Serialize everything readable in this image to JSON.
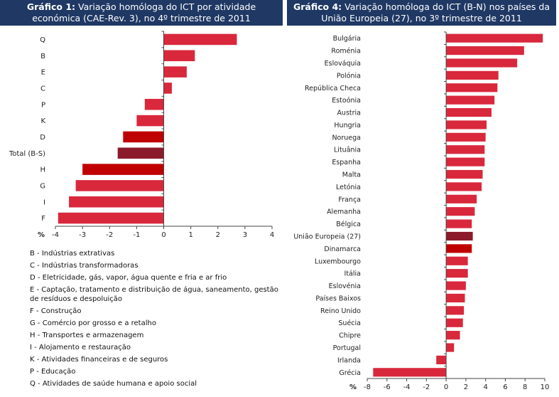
{
  "chart1": {
    "title_bold": "Gráfico 1:",
    "title_line1": " Variação homóloga do ICT por atividade",
    "title_line2": "económica (CAE-Rev. 3), no 4º trimestre de 2011",
    "unit_label": "%"
  },
  "chart2": {
    "title_bold": "Gráfico 4:",
    "title_line1": " Variação homóloga do ICT (B-N) nos países da",
    "title_line2": "União Europeia (27), no 3º trimestre de 2011",
    "unit_label": "%"
  },
  "legend": [
    "B - Indústrias extrativas",
    "C - Indústrias transformadoras",
    "D - Eletricidade, gás, vapor, água quente e fria e ar frio",
    "E - Captação, tratamento e distribuição de água, saneamento, gestão de resíduos e despoluição",
    "F - Construção",
    "G - Comércio por grosso e a retalho",
    "H - Transportes e armazenagem",
    "I - Alojamento e restauração",
    "K - Atividades financeiras e de seguros",
    "P - Educação",
    "Q - Atividades de saúde humana e apoio social"
  ],
  "colors": {
    "bar": "#d9283c",
    "bar_dark": "#c00000",
    "bar_total": "#8b1a2a",
    "header_bg": "#1f3864"
  },
  "chart_data": [
    {
      "type": "bar",
      "orientation": "horizontal",
      "title": "Gráfico 1: Variação homóloga do ICT por atividade económica (CAE-Rev. 3), no 4º trimestre de 2011",
      "ylabel": "%",
      "categories": [
        "Q",
        "B",
        "E",
        "C",
        "P",
        "K",
        "D",
        "Total (B-S)",
        "H",
        "G",
        "I",
        "F"
      ],
      "values": [
        2.7,
        1.15,
        0.85,
        0.3,
        -0.7,
        -1.0,
        -1.5,
        -1.7,
        -3.0,
        -3.25,
        -3.5,
        -3.9
      ],
      "highlight": {
        "D": "dark",
        "H": "dark",
        "Total (B-S)": "total"
      },
      "xlim": [
        -4,
        4
      ],
      "xticks": [
        -4,
        -3,
        -2,
        -1,
        0,
        1,
        2,
        3,
        4
      ]
    },
    {
      "type": "bar",
      "orientation": "horizontal",
      "title": "Gráfico 4: Variação homóloga do ICT (B-N) nos países da União Europeia (27), no 3º trimestre de 2011",
      "ylabel": "%",
      "categories": [
        "Bulgária",
        "Roménia",
        "Eslováquia",
        "Polónia",
        "República Checa",
        "Estoónia",
        "Austria",
        "Hungria",
        "Noruega",
        "Lituânia",
        "Espanha",
        "Malta",
        "Letónia",
        "França",
        "Alemanha",
        "Bélgica",
        "União Europeia (27)",
        "Dinamarca",
        "Luxembourgo",
        "Itália",
        "Eslovénia",
        "Países Baixos",
        "Reino Unido",
        "Suécia",
        "Chipre",
        "Portugal",
        "Irlanda",
        "Grécia"
      ],
      "values": [
        9.8,
        7.9,
        7.2,
        5.3,
        5.2,
        4.9,
        4.6,
        4.1,
        4.0,
        3.9,
        3.9,
        3.7,
        3.6,
        3.1,
        2.9,
        2.6,
        2.7,
        2.6,
        2.2,
        2.2,
        2.0,
        1.9,
        1.8,
        1.7,
        1.4,
        0.8,
        -1.0,
        -7.4
      ],
      "highlight": {
        "União Europeia (27)": "total",
        "Dinamarca": "dark"
      },
      "xlim": [
        -8,
        10
      ],
      "xticks": [
        -8,
        -6,
        -4,
        -2,
        0,
        2,
        4,
        6,
        8,
        10
      ]
    }
  ]
}
